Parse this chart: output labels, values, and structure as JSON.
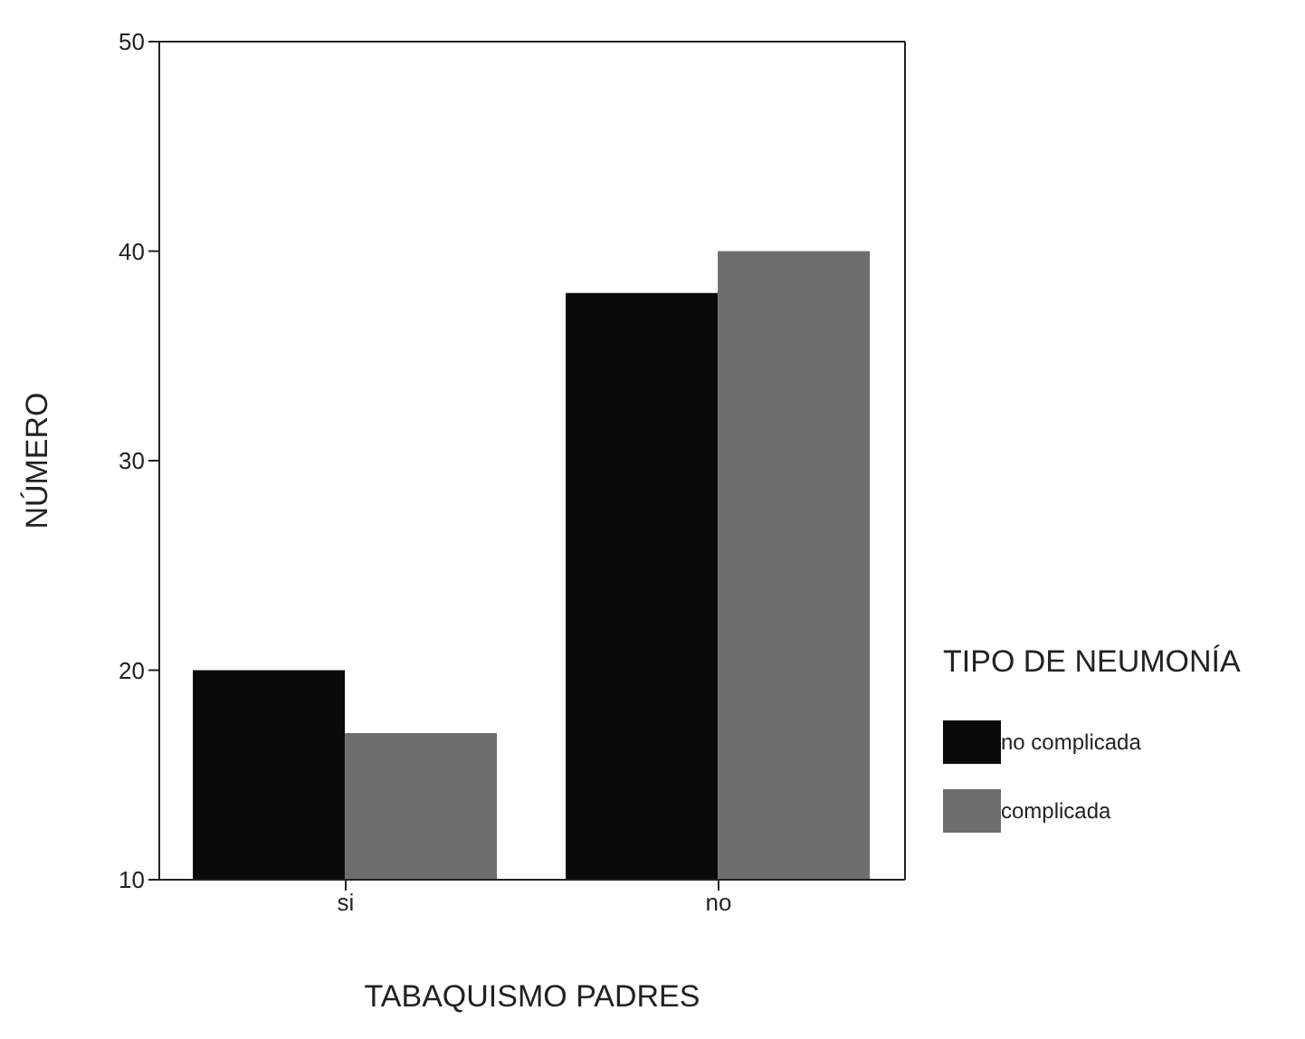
{
  "chart_data": {
    "type": "bar",
    "xlabel": "TABAQUISMO PADRES",
    "ylabel": "NÚMERO",
    "legend_title": "TIPO DE NEUMONÍA",
    "categories": [
      "si",
      "no"
    ],
    "series": [
      {
        "name": "no complicada",
        "color": "#0a0a0a",
        "values": [
          20,
          38
        ]
      },
      {
        "name": "complicada",
        "color": "#6e6e6e",
        "values": [
          17,
          40
        ]
      }
    ],
    "ylim": [
      10,
      50
    ],
    "yticks": [
      10,
      20,
      30,
      40,
      50
    ],
    "grid": false,
    "legend": "right"
  }
}
